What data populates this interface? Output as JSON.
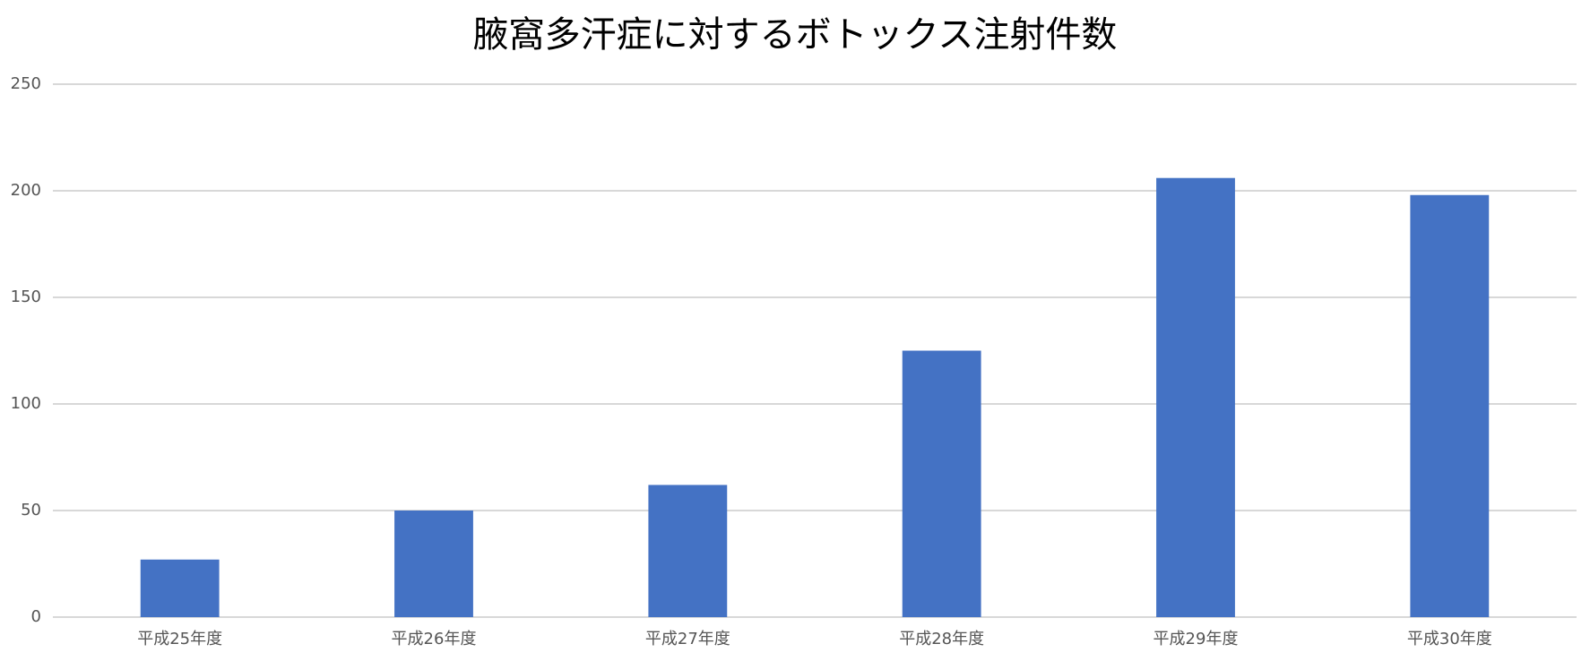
{
  "chart_data": {
    "type": "bar",
    "title": "腋窩多汗症に対するボトックス注射件数",
    "categories": [
      "平成25年度",
      "平成26年度",
      "平成27年度",
      "平成28年度",
      "平成29年度",
      "平成30年度"
    ],
    "values": [
      27,
      50,
      62,
      125,
      206,
      198
    ],
    "color": "#4472c4",
    "ylim": [
      0,
      250
    ],
    "yticks": [
      0,
      50,
      100,
      150,
      200,
      250
    ],
    "grid": true
  }
}
